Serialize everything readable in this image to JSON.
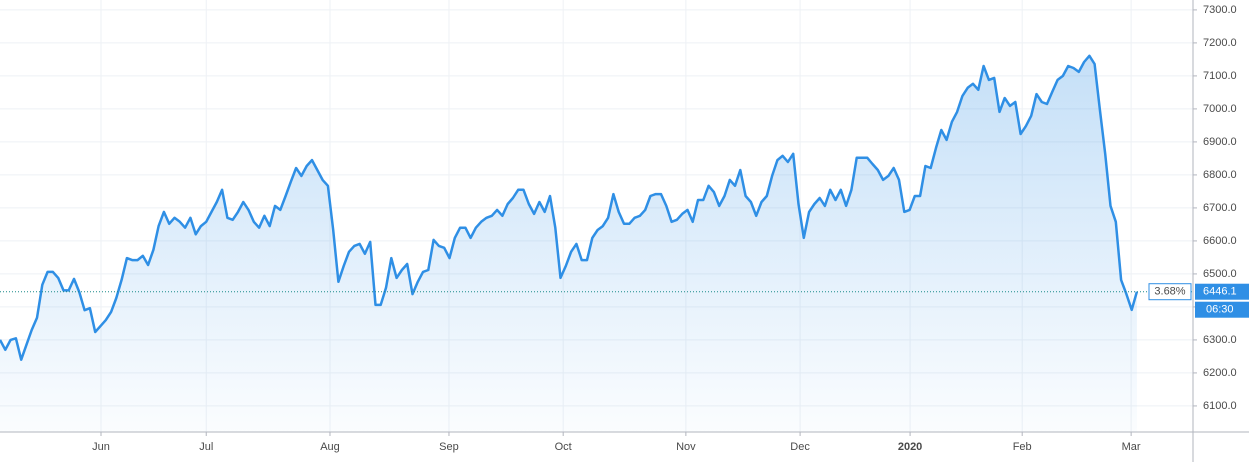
{
  "chart_data": {
    "type": "line",
    "values": [
      6300,
      6270,
      6300,
      6305,
      6240,
      6285,
      6330,
      6367,
      6467,
      6506,
      6506,
      6488,
      6450,
      6450,
      6485,
      6445,
      6390,
      6396,
      6324,
      6342,
      6360,
      6385,
      6427,
      6482,
      6548,
      6542,
      6542,
      6555,
      6527,
      6573,
      6645,
      6688,
      6652,
      6670,
      6658,
      6640,
      6670,
      6620,
      6645,
      6658,
      6688,
      6718,
      6755,
      6670,
      6664,
      6688,
      6718,
      6694,
      6658,
      6640,
      6676,
      6645,
      6706,
      6694,
      6736,
      6779,
      6821,
      6797,
      6827,
      6845,
      6815,
      6785,
      6767,
      6633,
      6476,
      6524,
      6567,
      6585,
      6591,
      6561,
      6597,
      6406,
      6406,
      6458,
      6548,
      6488,
      6512,
      6530,
      6439,
      6476,
      6506,
      6512,
      6603,
      6585,
      6579,
      6548,
      6609,
      6640,
      6640,
      6609,
      6640,
      6658,
      6670,
      6676,
      6694,
      6676,
      6712,
      6730,
      6755,
      6755,
      6712,
      6682,
      6718,
      6688,
      6736,
      6640,
      6488,
      6524,
      6567,
      6591,
      6542,
      6542,
      6609,
      6633,
      6645,
      6670,
      6742,
      6688,
      6652,
      6652,
      6670,
      6676,
      6694,
      6736,
      6742,
      6742,
      6706,
      6658,
      6664,
      6682,
      6694,
      6658,
      6724,
      6724,
      6767,
      6748,
      6706,
      6736,
      6785,
      6767,
      6815,
      6736,
      6718,
      6676,
      6718,
      6736,
      6797,
      6845,
      6858,
      6839,
      6864,
      6712,
      6609,
      6688,
      6712,
      6730,
      6706,
      6755,
      6724,
      6755,
      6706,
      6755,
      6852,
      6852,
      6852,
      6833,
      6815,
      6785,
      6797,
      6821,
      6785,
      6688,
      6694,
      6736,
      6736,
      6827,
      6821,
      6882,
      6936,
      6906,
      6961,
      6991,
      7039,
      7064,
      7076,
      7058,
      7130,
      7088,
      7094,
      6991,
      7033,
      7009,
      7021,
      6924,
      6948,
      6979,
      7045,
      7021,
      7015,
      7052,
      7088,
      7100,
      7130,
      7124,
      7112,
      7142,
      7161,
      7136,
      6997,
      6864,
      6706,
      6658,
      6482,
      6439,
      6391,
      6446.1
    ],
    "color": "#2f8fe5",
    "xlim": [
      0,
      225.6
    ],
    "xticks": [
      {
        "value": 19.1,
        "label": "Jun"
      },
      {
        "value": 39.0,
        "label": "Jul"
      },
      {
        "value": 62.4,
        "label": "Aug"
      },
      {
        "value": 84.9,
        "label": "Sep"
      },
      {
        "value": 106.5,
        "label": "Oct"
      },
      {
        "value": 129.7,
        "label": "Nov"
      },
      {
        "value": 151.3,
        "label": "Dec"
      },
      {
        "value": 172.1,
        "label": "2020"
      },
      {
        "value": 193.3,
        "label": "Feb"
      },
      {
        "value": 213.9,
        "label": "Mar"
      }
    ],
    "ylim": [
      6021,
      7330
    ],
    "yticks": [
      {
        "value": 6100,
        "label": "6100.0"
      },
      {
        "value": 6200,
        "label": "6200.0"
      },
      {
        "value": 6300,
        "label": "6300.0"
      },
      {
        "value": 6400,
        "label": "6400.0"
      },
      {
        "value": 6500,
        "label": "6500.0"
      },
      {
        "value": 6600,
        "label": "6600.0"
      },
      {
        "value": 6700,
        "label": "6700.0"
      },
      {
        "value": 6800,
        "label": "6800.0"
      },
      {
        "value": 6900,
        "label": "6900.0"
      },
      {
        "value": 7000,
        "label": "7000.0"
      },
      {
        "value": 7100,
        "label": "7100.0"
      },
      {
        "value": 7200,
        "label": "7200.0"
      },
      {
        "value": 7300,
        "label": "7300.0"
      }
    ],
    "grid": true,
    "change_label": "3.68%",
    "time_label": "06:30"
  }
}
